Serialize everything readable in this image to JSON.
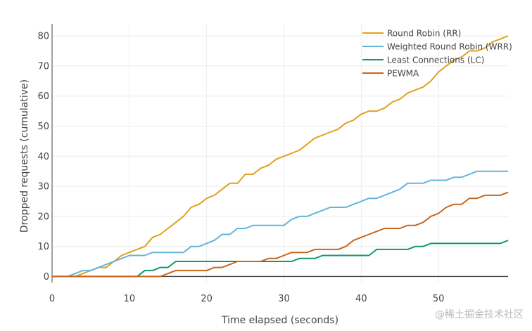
{
  "chart_data": {
    "type": "line",
    "title": "",
    "xlabel": "Time elapsed (seconds)",
    "ylabel": "Dropped requests (cumulative)",
    "xlim": [
      0,
      59
    ],
    "ylim": [
      -2,
      84
    ],
    "x_ticks": [
      "0",
      "10",
      "20",
      "30",
      "40",
      "50"
    ],
    "y_ticks": [
      "0",
      "10",
      "20",
      "30",
      "40",
      "50",
      "60",
      "70",
      "80"
    ],
    "grid": true,
    "legend_position": "top-right",
    "x": [
      0,
      1,
      2,
      3,
      4,
      5,
      6,
      7,
      8,
      9,
      10,
      11,
      12,
      13,
      14,
      15,
      16,
      17,
      18,
      19,
      20,
      21,
      22,
      23,
      24,
      25,
      26,
      27,
      28,
      29,
      30,
      31,
      32,
      33,
      34,
      35,
      36,
      37,
      38,
      39,
      40,
      41,
      42,
      43,
      44,
      45,
      46,
      47,
      48,
      49,
      50,
      51,
      52,
      53,
      54,
      55,
      56,
      57,
      58,
      59
    ],
    "series": [
      {
        "name": "Round Robin (RR)",
        "color": "#e0a21f",
        "values": [
          0,
          0,
          0,
          0,
          1,
          2,
          3,
          3,
          5,
          7,
          8,
          9,
          10,
          13,
          14,
          16,
          18,
          20,
          23,
          24,
          26,
          27,
          29,
          31,
          31,
          34,
          34,
          36,
          37,
          39,
          40,
          41,
          42,
          44,
          46,
          47,
          48,
          49,
          51,
          52,
          54,
          55,
          55,
          56,
          58,
          59,
          61,
          62,
          63,
          65,
          68,
          70,
          72,
          73,
          75,
          75,
          76,
          78,
          79,
          80
        ]
      },
      {
        "name": "Weighted Round Robin (WRR)",
        "color": "#62b5dd",
        "values": [
          0,
          0,
          0,
          1,
          2,
          2,
          3,
          4,
          5,
          6,
          7,
          7,
          7,
          8,
          8,
          8,
          8,
          8,
          10,
          10,
          11,
          12,
          14,
          14,
          16,
          16,
          17,
          17,
          17,
          17,
          17,
          19,
          20,
          20,
          21,
          22,
          23,
          23,
          23,
          24,
          25,
          26,
          26,
          27,
          28,
          29,
          31,
          31,
          31,
          32,
          32,
          32,
          33,
          33,
          34,
          35,
          35,
          35,
          35,
          35
        ]
      },
      {
        "name": "Least Connections (LC)",
        "color": "#129a6b",
        "values": [
          0,
          0,
          0,
          0,
          0,
          0,
          0,
          0,
          0,
          0,
          0,
          0,
          2,
          2,
          3,
          3,
          5,
          5,
          5,
          5,
          5,
          5,
          5,
          5,
          5,
          5,
          5,
          5,
          5,
          5,
          5,
          5,
          6,
          6,
          6,
          7,
          7,
          7,
          7,
          7,
          7,
          7,
          9,
          9,
          9,
          9,
          9,
          10,
          10,
          11,
          11,
          11,
          11,
          11,
          11,
          11,
          11,
          11,
          11,
          12
        ]
      },
      {
        "name": "PEWMA",
        "color": "#c9651c",
        "values": [
          0,
          0,
          0,
          0,
          0,
          0,
          0,
          0,
          0,
          0,
          0,
          0,
          0,
          0,
          0,
          1,
          2,
          2,
          2,
          2,
          2,
          3,
          3,
          4,
          5,
          5,
          5,
          5,
          6,
          6,
          7,
          8,
          8,
          8,
          9,
          9,
          9,
          9,
          10,
          12,
          13,
          14,
          15,
          16,
          16,
          16,
          17,
          17,
          18,
          20,
          21,
          23,
          24,
          24,
          26,
          26,
          27,
          27,
          27,
          28
        ]
      }
    ]
  },
  "watermark": "@稀土掘金技术社区"
}
